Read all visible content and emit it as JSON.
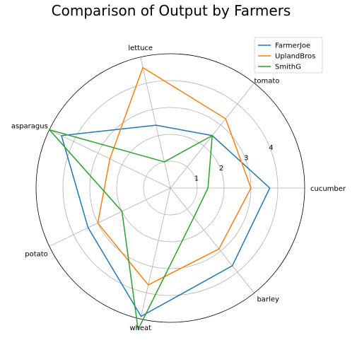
{
  "chart_data": {
    "type": "radar",
    "title": "Comparison of Output by Farmers",
    "categories": [
      "cucumber",
      "tomato",
      "lettuce",
      "asparagus",
      "potato",
      "wheat",
      "barley"
    ],
    "radial_ticks": [
      "1",
      "2",
      "3",
      "4"
    ],
    "rmax": 5,
    "grid": true,
    "legend_position": "top-right",
    "series": [
      {
        "name": "FarmerJoe",
        "color": "#1f77b4",
        "values": [
          3.7,
          2.5,
          2.4,
          4.5,
          3.4,
          4.9,
          3.7
        ]
      },
      {
        "name": "UplandBros",
        "color": "#ff7f0e",
        "values": [
          3.0,
          3.3,
          4.6,
          2.5,
          3.0,
          3.7,
          2.9
        ]
      },
      {
        "name": "SmithG",
        "color": "#2ca02c",
        "values": [
          1.4,
          2.5,
          1.0,
          5.0,
          2.0,
          5.4,
          1.4
        ]
      }
    ]
  }
}
